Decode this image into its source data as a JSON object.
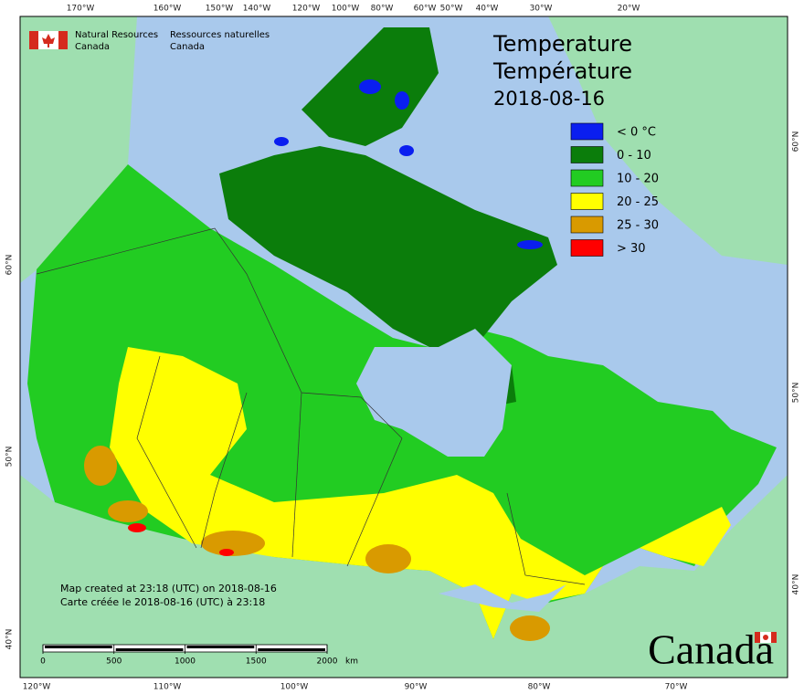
{
  "header": {
    "agency_en": [
      "Natural Resources",
      "Canada"
    ],
    "agency_fr": [
      "Ressources naturelles",
      "Canada"
    ]
  },
  "title": [
    "Temperature",
    "Température",
    "2018-08-16"
  ],
  "legend": [
    {
      "label": "< 0 °C",
      "color": "#0a1ef0"
    },
    {
      "label": "0 - 10",
      "color": "#0b7d0b"
    },
    {
      "label": "10 - 20",
      "color": "#22cc22"
    },
    {
      "label": "20 - 25",
      "color": "#ffff00"
    },
    {
      "label": "25 - 30",
      "color": "#d99a00"
    },
    {
      "label": "> 30",
      "color": "#ff0000"
    }
  ],
  "graticule": {
    "top": [
      "170°W",
      "160°W",
      "150°W",
      "140°W",
      "120°W",
      "100°W",
      "80°W",
      "60°W",
      "50°W",
      "40°W",
      "30°W",
      "20°W"
    ],
    "bottom": [
      "120°W",
      "110°W",
      "100°W",
      "90°W",
      "80°W",
      "70°W"
    ],
    "left": [
      "60°N",
      "50°N",
      "40°N"
    ],
    "right": [
      "60°N",
      "50°N",
      "40°N"
    ]
  },
  "notes": [
    "Map created at 23:18 (UTC) on 2018-08-16",
    "Carte créée le 2018-08-16 (UTC) à 23:18"
  ],
  "scale": {
    "ticks": [
      0,
      500,
      1000,
      1500,
      2000
    ],
    "unit": "km"
  },
  "wordmark": "Canada"
}
